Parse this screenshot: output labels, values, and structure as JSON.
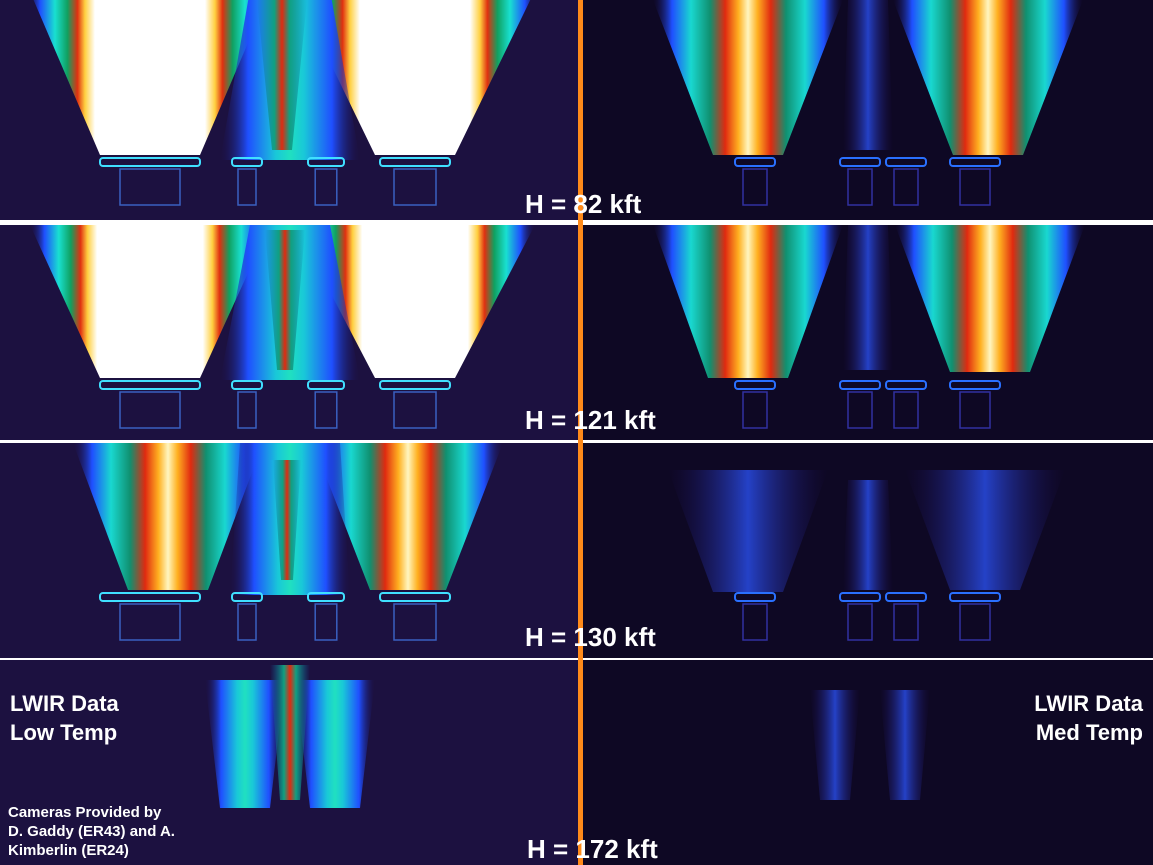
{
  "panels": [
    {
      "altitude": "H = 82 kft"
    },
    {
      "altitude": "H = 121 kft"
    },
    {
      "altitude": "H = 130 kft"
    },
    {
      "altitude": "H = 172 kft"
    }
  ],
  "left_label": [
    "LWIR Data",
    "Low Temp"
  ],
  "right_label": [
    "LWIR Data",
    "Med Temp"
  ],
  "credit": [
    "Cameras Provided by",
    "D. Gaddy (ER43) and A.",
    "Kimberlin (ER24)"
  ]
}
